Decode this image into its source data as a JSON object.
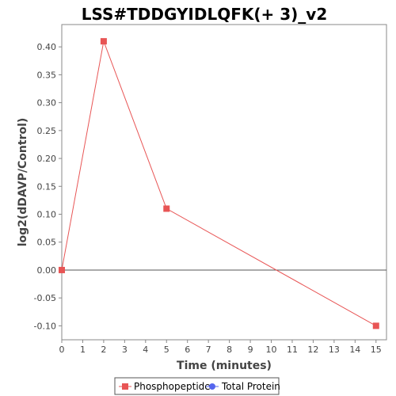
{
  "chart_data": {
    "type": "line",
    "title": "LSS#TDDGYIDLQFK(+ 3)_v2",
    "xlabel": "Time (minutes)",
    "ylabel": "log2(dDAVP/Control)",
    "xlim": [
      0,
      15.5
    ],
    "ylim": [
      -0.125,
      0.44
    ],
    "x_ticks": [
      0,
      1,
      2,
      3,
      4,
      5,
      6,
      7,
      8,
      9,
      10,
      11,
      12,
      13,
      14,
      15
    ],
    "x_tick_labels": [
      "0",
      "1",
      "2",
      "3",
      "4",
      "5",
      "6",
      "7",
      "8",
      "9",
      "10",
      "11",
      "12",
      "13",
      "14",
      "15"
    ],
    "y_ticks": [
      -0.1,
      -0.05,
      0.0,
      0.05,
      0.1,
      0.15,
      0.2,
      0.25,
      0.3,
      0.35,
      0.4
    ],
    "y_tick_labels": [
      "-0.10",
      "-0.05",
      "0.00",
      "0.05",
      "0.10",
      "0.15",
      "0.20",
      "0.25",
      "0.30",
      "0.35",
      "0.40"
    ],
    "zero_line": true,
    "grid": false,
    "legend_position": "bottom",
    "series": [
      {
        "name": "Phosphopeptide",
        "color": "#e85555",
        "marker": "square",
        "x": [
          0,
          2,
          5,
          15
        ],
        "y": [
          0.0,
          0.41,
          0.11,
          -0.1
        ]
      },
      {
        "name": "Total Protein",
        "color": "#5566ee",
        "marker": "circle",
        "x": [],
        "y": []
      }
    ]
  }
}
